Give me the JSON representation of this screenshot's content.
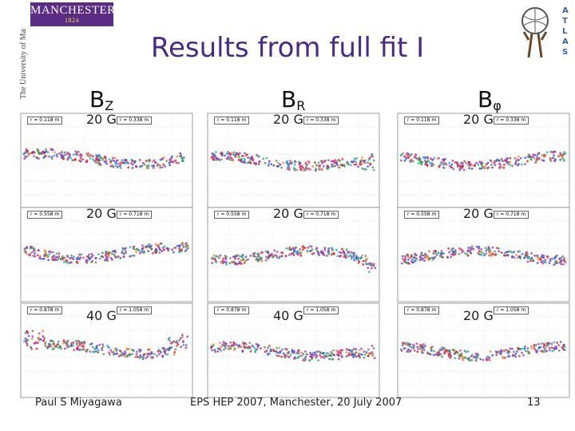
{
  "header": {
    "logo_text": "MANCHESTER",
    "logo_year": "1824",
    "university_vertical": "The University of Manchester",
    "title": "Results from full fit I",
    "atlas_letters": [
      "A",
      "T",
      "L",
      "A",
      "S"
    ]
  },
  "columns": [
    {
      "symbol": "B",
      "sub": "Z"
    },
    {
      "symbol": "B",
      "sub": "R"
    },
    {
      "symbol": "B",
      "sub": "φ"
    }
  ],
  "panels": [
    {
      "scale": "20 G",
      "r_left": "r = 0.118 m",
      "r_right": "r = 0.338 m"
    },
    {
      "scale": "20 G",
      "r_left": "r = 0.118 m",
      "r_right": "r = 0.338 m"
    },
    {
      "scale": "20 G",
      "r_left": "r = 0.118 m",
      "r_right": "r = 0.338 m"
    },
    {
      "scale": "20 G",
      "r_left": "r = 0.558 m",
      "r_right": "r = 0.718 m"
    },
    {
      "scale": "20 G",
      "r_left": "r = 0.558 m",
      "r_right": "r = 0.718 m"
    },
    {
      "scale": "20 G",
      "r_left": "r = 0.558 m",
      "r_right": "r = 0.718 m"
    },
    {
      "scale": "40 G",
      "r_left": "r = 0.878 m",
      "r_right": "r = 1.058 m"
    },
    {
      "scale": "40 G",
      "r_left": "r = 0.878 m",
      "r_right": "r = 1.058 m"
    },
    {
      "scale": "20 G",
      "r_left": "r = 0.878 m",
      "r_right": "r = 1.058 m"
    }
  ],
  "footer": {
    "author": "Paul S Miyagawa",
    "event": "EPS HEP 2007, Manchester, 20 July 2007",
    "page": "13"
  },
  "colors": {
    "title": "#4a2a88",
    "logo_bg": "#5a2c83"
  }
}
